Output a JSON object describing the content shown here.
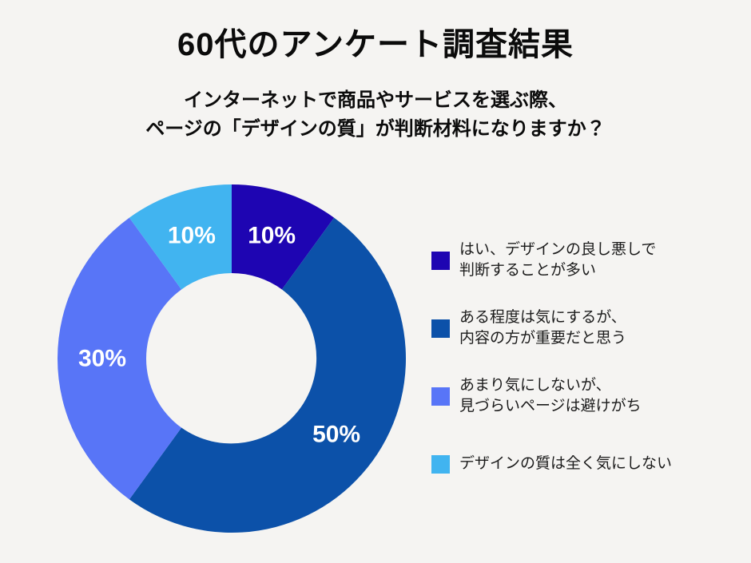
{
  "page": {
    "background_color": "#F5F4F2"
  },
  "header": {
    "title": "60代のアンケート調査結果",
    "subtitle": "インターネットで商品やサービスを選ぶ際、\nページの「デザインの質」が判断材料になりますか？"
  },
  "chart_data": {
    "type": "pie",
    "variant": "donut",
    "title": "60代のアンケート調査結果",
    "question": "インターネットで商品やサービスを選ぶ際、ページの「デザインの質」が判断材料になりますか？",
    "unit": "%",
    "start_angle_deg": 0,
    "direction": "clockwise",
    "legend_position": "right",
    "data_label_color": "#FFFFFF",
    "segments": [
      {
        "label": "はい、デザインの良し悪しで\n判断することが多い",
        "value": 10,
        "data_label": "10%",
        "color": "#1E05B2"
      },
      {
        "label": "ある程度は気にするが、\n内容の方が重要だと思う",
        "value": 50,
        "data_label": "50%",
        "color": "#0C51A9"
      },
      {
        "label": "あまり気にしないが、\n見づらいページは避けがち",
        "value": 30,
        "data_label": "30%",
        "color": "#5875F7"
      },
      {
        "label": "デザインの質は全く気にしない",
        "value": 10,
        "data_label": "10%",
        "color": "#41B4F0"
      }
    ]
  }
}
